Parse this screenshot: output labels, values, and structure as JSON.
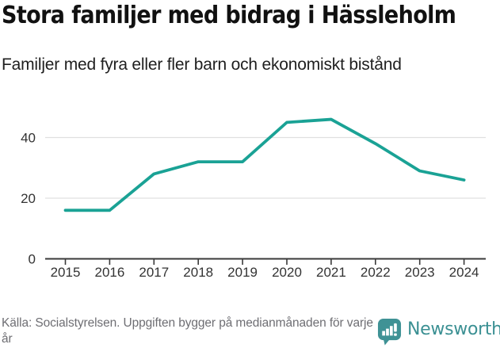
{
  "header": {
    "title": "Stora familjer med bidrag i Hässleholm",
    "subtitle": "Familjer med fyra eller fler barn och ekonomiskt bistånd"
  },
  "footer": {
    "source_note": "Källa: Socialstyrelsen. Uppgiften bygger på medianmånaden för varje år",
    "brand_name": "Newsworthy",
    "brand_icon": "bar-chart-speech-bubble-icon"
  },
  "colors": {
    "background": "#ffffff",
    "title_text": "#111111",
    "line": "#1aa295",
    "grid": "#e0e0e0",
    "axis": "#3a3a3a",
    "tick_label": "#333333",
    "source_text": "#6e6e73",
    "brand": "#3b9093"
  },
  "chart_data": {
    "type": "line",
    "title": "Stora familjer med bidrag i Hässleholm",
    "subtitle": "Familjer med fyra eller fler barn och ekonomiskt bistånd",
    "x": [
      "2015",
      "2016",
      "2017",
      "2018",
      "2019",
      "2020",
      "2021",
      "2022",
      "2023",
      "2024"
    ],
    "series": [
      {
        "name": "Familjer med fyra eller fler barn och ekonomiskt bistånd",
        "values": [
          16,
          16,
          28,
          32,
          32,
          45,
          46,
          38,
          29,
          26
        ]
      }
    ],
    "yticks": [
      0,
      20,
      40
    ],
    "ylim": [
      0,
      54
    ],
    "xlabel": "",
    "ylabel": "",
    "grid": "horizontal-light",
    "legend": "none",
    "line_color": "#1aa295"
  }
}
